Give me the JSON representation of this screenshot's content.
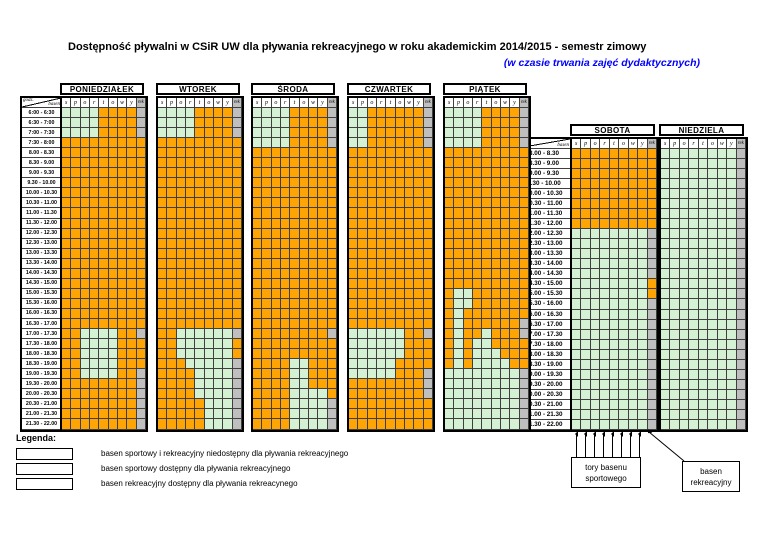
{
  "page_title": "Dostępność pływalni w CSiR UW dla pływania rekreacyjnego w roku akademickim 2014/2015 - semestr zimowy",
  "page_subtitle": "(w czasie trwania zajęć dydaktycznych)",
  "colors": {
    "unavailable_orange": "#FFA405",
    "sport_available_green": "#D5F1D3",
    "rek_available_gray": "#BFBFBF",
    "subtitle_blue": "#0000FF",
    "grid_line": "#3f3f3f"
  },
  "corner_header": {
    "left": "godz.",
    "right": "basen"
  },
  "lane_headers": [
    "s",
    "p",
    "o",
    "r",
    "t",
    "o",
    "w",
    "y",
    "rek"
  ],
  "legend": {
    "heading": "Legenda:",
    "items": [
      {
        "color": "#FFA405",
        "label": "basen sportowy i rekreacyjny niedostępny dla pływania rekreacyjnego"
      },
      {
        "color": "#D5F1D3",
        "label": "basen sportowy dostępny dla pływania rekreacyjnego"
      },
      {
        "color": "#BFBFBF",
        "label": "basen rekreacyjny dostępny dla pływania rekreacynego"
      }
    ]
  },
  "annotations": {
    "sport_lanes_line1": "tory basenu",
    "sport_lanes_line2": "sportowego",
    "rek_pool_line1": "basen",
    "rek_pool_line2": "rekreacyjny"
  },
  "chart_data": {
    "type": "heatmap",
    "cell_codes": {
      "o": "basen sportowy i rekreacyjny niedostępny dla pływania rekreacyjnego (orange)",
      "g": "basen sportowy dostępny dla pływania rekreacyjnego (green)",
      "s": "basen rekreacyjny dostępny dla pływania rekreacyjnego (gray)"
    },
    "columns_note": "9 columns per day: 8 lanes of sport pool (s,p,o,r,t,o,w,y) + recreational pool (rek)",
    "weekday_times": [
      "6:00 - 6:30",
      "6:30 - 7:00",
      "7:00 - 7:30",
      "7:30 - 8:00",
      "8.00 - 8.30",
      "8.30 - 9.00",
      "9.00 - 9.30",
      "9.30 - 10.00",
      "10.00 - 10.30",
      "10.30 - 11.00",
      "11.00 - 11.30",
      "11.30 - 12.00",
      "12.00 - 12.30",
      "12.30 - 13.00",
      "13.00 - 13.30",
      "13.30 - 14.00",
      "14.00 - 14.30",
      "14.30 - 15.00",
      "15.00 - 15.30",
      "15.30 - 16.00",
      "16.00 - 16.30",
      "16.30 - 17.00",
      "17.00 - 17.30",
      "17.30 - 18.00",
      "18.00 - 18.30",
      "18.30 - 19.00",
      "19.00 - 19.30",
      "19.30 - 20.00",
      "20.00 - 20.30",
      "20.30 - 21.00",
      "21.00 - 21.30",
      "21.30 - 22.00"
    ],
    "weekend_times": [
      "8.00 - 8.30",
      "8.30 - 9.00",
      "9.00 - 9.30",
      "9.30 - 10.00",
      "10.00 - 10.30",
      "10.30 - 11.00",
      "11.00 - 11.30",
      "11.30 - 12.00",
      "12.00 - 12.30",
      "12.30 - 13.00",
      "13.00 - 13.30",
      "13.30 - 14.00",
      "14.00 - 14.30",
      "14.30 - 15.00",
      "15.00 - 15.30",
      "15.30 - 16.00",
      "16.00 - 16.30",
      "16.30 - 17.00",
      "17.00 - 17.30",
      "17.30 - 18.00",
      "18.00 - 18.30",
      "18.30 - 19.00",
      "19.00 - 19.30",
      "19.30 - 20.00",
      "20.00 - 20.30",
      "20.30 - 21.00",
      "21.00 - 21.30",
      "21.30 - 22.00"
    ],
    "days": [
      {
        "name": "PONIEDZIAŁEK",
        "schedule": "weekday",
        "rows": [
          "ggggoooos",
          "ggggoooos",
          "ggggoooos",
          "ooooooooo",
          "ooooooooo",
          "ooooooooo",
          "ooooooooo",
          "ooooooooo",
          "ooooooooo",
          "ooooooooo",
          "ooooooooo",
          "ooooooooo",
          "ooooooooo",
          "ooooooooo",
          "ooooooooo",
          "ooooooooo",
          "ooooooooo",
          "ooooooooo",
          "ooooooooo",
          "ooooooooo",
          "ooooooooo",
          "ooooooooo",
          "ooggggoos",
          "ooggggooo",
          "ooggggooo",
          "ooggggooo",
          "ooggggoos",
          "oooooooos",
          "oooooooos",
          "oooooooos",
          "oooooooos",
          "oooooooos"
        ]
      },
      {
        "name": "WTOREK",
        "schedule": "weekday",
        "rows": [
          "ggggoooos",
          "ggggoooos",
          "ggggoooos",
          "ooooooooo",
          "ooooooooo",
          "ooooooooo",
          "ooooooooo",
          "ooooooooo",
          "ooooooooo",
          "ooooooooo",
          "ooooooooo",
          "ooooooooo",
          "ooooooooo",
          "ooooooooo",
          "ooooooooo",
          "ooooooooo",
          "ooooooooo",
          "ooooooooo",
          "ooooooooo",
          "ooooooooo",
          "ooooooooo",
          "ooooooooo",
          "ooggggggs",
          "ooggggggo",
          "ooggggggo",
          "ooogggggs",
          "ooooggggs",
          "ooooggggs",
          "ooooggggs",
          "ooooogggs",
          "ooooogggs",
          "ooooogggs"
        ]
      },
      {
        "name": "ŚRODA",
        "schedule": "weekday",
        "rows": [
          "ggggoooos",
          "ggggoooos",
          "ggggoooos",
          "ggggoooos",
          "ooooooooo",
          "ooooooooo",
          "ooooooooo",
          "ooooooooo",
          "ooooooooo",
          "ooooooooo",
          "ooooooooo",
          "ooooooooo",
          "ooooooooo",
          "ooooooooo",
          "ooooooooo",
          "ooooooooo",
          "ooooooooo",
          "ooooooooo",
          "ooooooooo",
          "ooooooooo",
          "ooooooooo",
          "ooooooooo",
          "oooooooos",
          "ooooooooo",
          "ooooooooo",
          "ooooggooo",
          "ooooggooo",
          "ooooggooo",
          "ooooggggo",
          "ooooggggs",
          "ooooggggs",
          "ooooggggs"
        ]
      },
      {
        "name": "CZWARTEK",
        "schedule": "weekday",
        "rows": [
          "ggoooooos",
          "ggoooooos",
          "ggoooooos",
          "ggoooooos",
          "ooooooooo",
          "ooooooooo",
          "ooooooooo",
          "ooooooooo",
          "ooooooooo",
          "ooooooooo",
          "ooooooooo",
          "ooooooooo",
          "ooooooooo",
          "ooooooooo",
          "ooooooooo",
          "ooooooooo",
          "ooooooooo",
          "ooooooooo",
          "ooooooooo",
          "ooooooooo",
          "ooooooooo",
          "ooooooooo",
          "ggggggoos",
          "ggggggooo",
          "ggggggooo",
          "gggggoooo",
          "gggggooos",
          "oooooooos",
          "oooooooos",
          "ooooooooo",
          "ooooooooo",
          "ooooooooo"
        ]
      },
      {
        "name": "PIĄTEK",
        "schedule": "weekday",
        "rows": [
          "ggggoooos",
          "ggggoooos",
          "ggggoooos",
          "ggggoooos",
          "ooooooooo",
          "ooooooooo",
          "ooooooooo",
          "ooooooooo",
          "ooooooooo",
          "ooooooooo",
          "ooooooooo",
          "ooooooooo",
          "ooooooooo",
          "ooooooooo",
          "ooooooooo",
          "ooooooooo",
          "ooooooooo",
          "ooooooooo",
          "oggoooooo",
          "oggoooooo",
          "ogooooooo",
          "ogoooooos",
          "ogoogooos",
          "ogoggoooo",
          "ogogggooo",
          "ogoggggoo",
          "ggggggggs",
          "ggggggggs",
          "ggggggggs",
          "ggggggggs",
          "ggggggggs",
          "ggggggggs"
        ]
      },
      {
        "name": "SOBOTA",
        "schedule": "weekend",
        "rows": [
          "ooooooooo",
          "ooooooooo",
          "ooooooooo",
          "ooooooooo",
          "ooooooooo",
          "ooooooooo",
          "ooooooooo",
          "ooooooooo",
          "ggggggggs",
          "ggggggggs",
          "ggggggggs",
          "ggggggggs",
          "ggggggggs",
          "ggggggggo",
          "ggggggggo",
          "ggggggggs",
          "ggggggggs",
          "ggggggggs",
          "ggggggggs",
          "ggggggggs",
          "ggggggggs",
          "ggggggggs",
          "ggggggggs",
          "ggggggggs",
          "ggggggggs",
          "ggggggggs",
          "ggggggggs",
          "ggggggggs"
        ]
      },
      {
        "name": "NIEDZIELA",
        "schedule": "weekend",
        "rows": [
          "ggggggggs",
          "ggggggggs",
          "ggggggggs",
          "ggggggggs",
          "ggggggggs",
          "ggggggggs",
          "ggggggggs",
          "ggggggggs",
          "ggggggggs",
          "ggggggggs",
          "ggggggggs",
          "ggggggggs",
          "ggggggggs",
          "ggggggggs",
          "ggggggggs",
          "ggggggggs",
          "ggggggggs",
          "ggggggggs",
          "ggggggggs",
          "ggggggggs",
          "ggggggggs",
          "ggggggggs",
          "ggggggggs",
          "ggggggggs",
          "ggggggggs",
          "ggggggggs",
          "ggggggggs",
          "ggggggggs"
        ]
      }
    ]
  }
}
